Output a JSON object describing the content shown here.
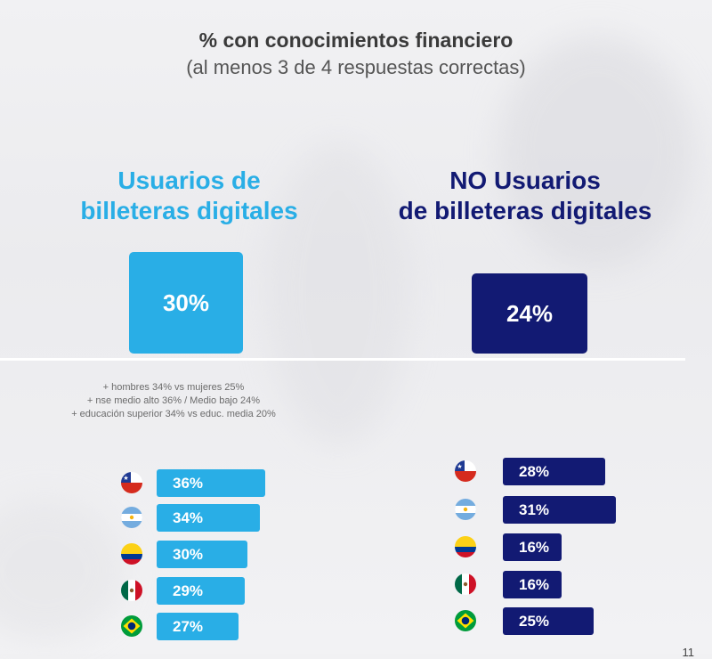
{
  "title": "%  con conocimientos financiero",
  "subtitle": "(al menos 3 de 4 respuestas correctas)",
  "colors": {
    "light_blue": "#29aee6",
    "dark_blue": "#121a73"
  },
  "page_number": "11",
  "chart_data": [
    {
      "type": "bar",
      "series_label": "Usuarios de billeteras digitales",
      "heading_lines": [
        "Usuarios de",
        "billeteras digitales"
      ],
      "total": 30,
      "total_label": "30%",
      "notes": [
        "+ hombres 34% vs mujeres 25%",
        "+ nse medio alto 36%  / Medio bajo 24%",
        "+ educación superior 34% vs educ. media 20%"
      ],
      "categories": [
        "chile-flag-icon",
        "argentina-flag-icon",
        "colombia-flag-icon",
        "mexico-flag-icon",
        "brazil-flag-icon"
      ],
      "values": [
        36,
        34,
        30,
        29,
        27
      ],
      "labels": [
        "36%",
        "34%",
        "30%",
        "29%",
        "27%"
      ],
      "color": "#29aee6"
    },
    {
      "type": "bar",
      "series_label": "NO Usuarios de billeteras digitales",
      "heading_lines": [
        "NO Usuarios",
        "de billeteras digitales"
      ],
      "total": 24,
      "total_label": "24%",
      "categories": [
        "chile-flag-icon",
        "argentina-flag-icon",
        "colombia-flag-icon",
        "mexico-flag-icon",
        "brazil-flag-icon"
      ],
      "values": [
        28,
        31,
        16,
        16,
        25
      ],
      "labels": [
        "28%",
        "31%",
        "16%",
        "16%",
        "25%"
      ],
      "color": "#121a73"
    }
  ]
}
